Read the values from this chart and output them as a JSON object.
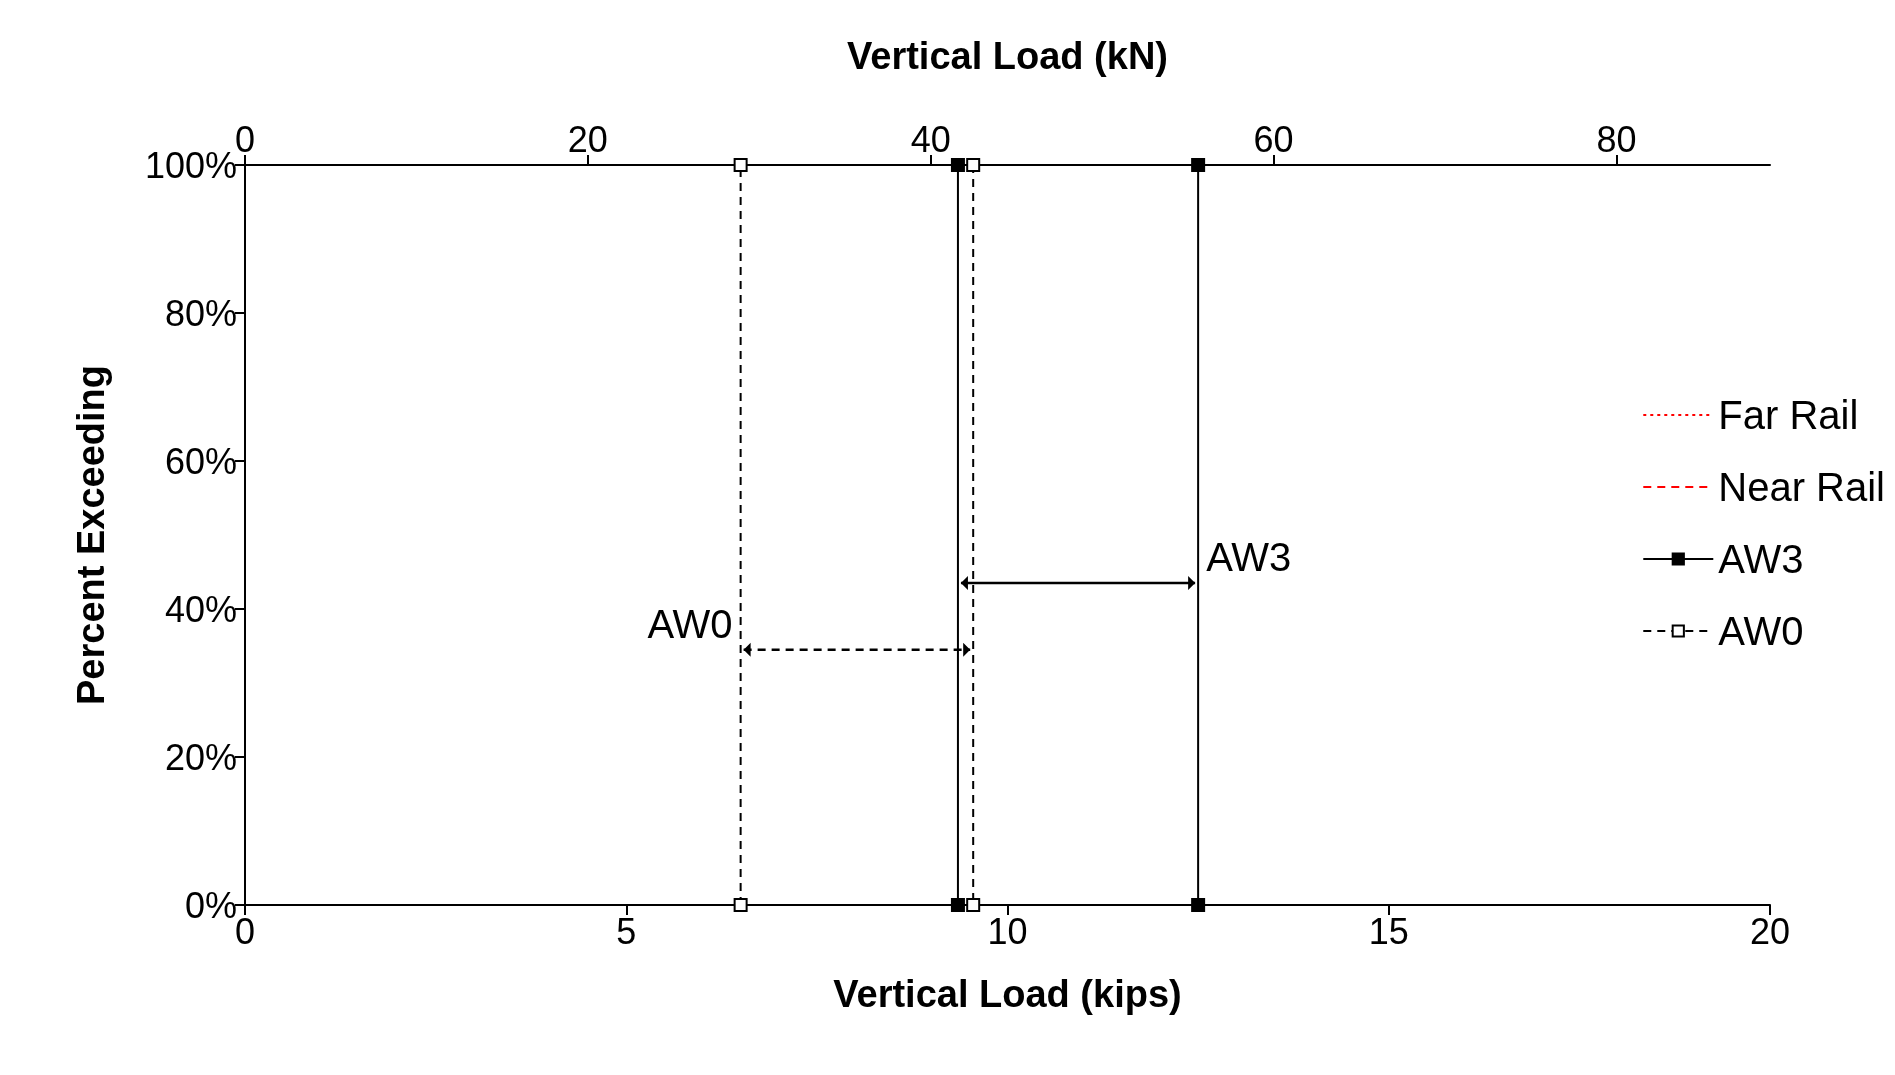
{
  "chart_data": {
    "type": "line",
    "xlabel": "Vertical Load (kips)",
    "x2label": "Vertical Load (kN)",
    "ylabel": "Percent Exceeding",
    "xlim": [
      0,
      20
    ],
    "xticks": [
      0,
      5,
      10,
      15,
      20
    ],
    "x2lim": [
      0,
      88.96
    ],
    "x2ticks": [
      0,
      20,
      40,
      60,
      80
    ],
    "ylim": [
      0,
      100
    ],
    "yticks": [
      {
        "value": 0,
        "label": "0%"
      },
      {
        "value": 20,
        "label": "20%"
      },
      {
        "value": 40,
        "label": "40%"
      },
      {
        "value": 60,
        "label": "60%"
      },
      {
        "value": 80,
        "label": "80%"
      },
      {
        "value": 100,
        "label": "100%"
      }
    ],
    "grid": false,
    "legend": "right",
    "series": [
      {
        "name": "Far Rail",
        "color": "#ff0000",
        "line_style": "dotted",
        "marker": "none"
      },
      {
        "name": "Near Rail",
        "color": "#ff0000",
        "line_style": "dashed",
        "marker": "none"
      },
      {
        "name": "AW3",
        "color": "#000000",
        "line_style": "solid",
        "marker": "square",
        "x": [
          9.35,
          9.35,
          11,
          12.5,
          12.5
        ],
        "values": [
          0,
          100,
          null,
          100,
          0
        ]
      },
      {
        "name": "AW0",
        "color": "#000000",
        "line_style": "dashed",
        "marker": "square",
        "x": [
          6.5,
          6.5,
          8,
          9.55,
          9.55
        ],
        "values": [
          0,
          100,
          null,
          100,
          0
        ]
      }
    ],
    "annotations": [
      {
        "text": "AW3",
        "x": 12.5,
        "y": 47
      },
      {
        "text": "AW0",
        "x": 6.5,
        "y": 38
      }
    ]
  }
}
